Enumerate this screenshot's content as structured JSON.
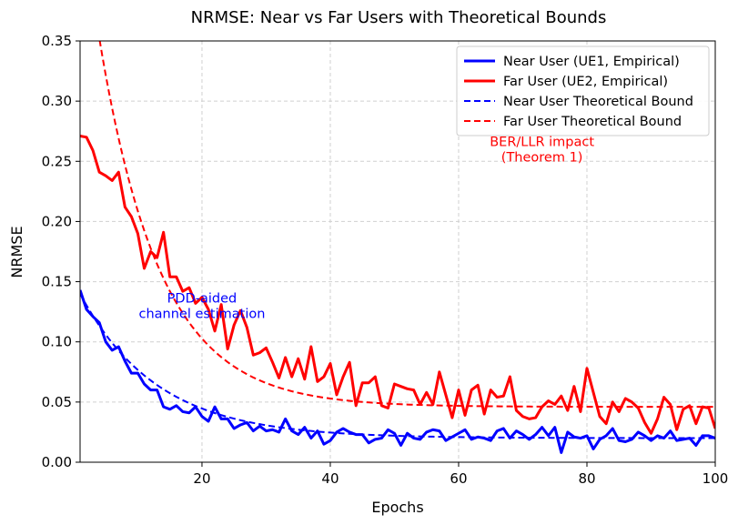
{
  "chart_data": {
    "type": "line",
    "title": "NRMSE: Near vs Far Users with Theoretical Bounds",
    "xlabel": "Epochs",
    "ylabel": "NRMSE",
    "xlim": [
      1,
      100
    ],
    "ylim": [
      0,
      0.35
    ],
    "x_ticks": [
      20,
      40,
      60,
      80,
      100
    ],
    "x_tick_labels": [
      "20",
      "40",
      "60",
      "80",
      "100"
    ],
    "y_ticks": [
      0.0,
      0.05,
      0.1,
      0.15,
      0.2,
      0.25,
      0.3,
      0.35
    ],
    "y_tick_labels": [
      "0.00",
      "0.05",
      "0.10",
      "0.15",
      "0.20",
      "0.25",
      "0.30",
      "0.35"
    ],
    "grid": true,
    "legend_position": "top-right",
    "x": [
      1,
      2,
      3,
      4,
      5,
      6,
      7,
      8,
      9,
      10,
      11,
      12,
      13,
      14,
      15,
      16,
      17,
      18,
      19,
      20,
      21,
      22,
      23,
      24,
      25,
      26,
      27,
      28,
      29,
      30,
      31,
      32,
      33,
      34,
      35,
      36,
      37,
      38,
      39,
      40,
      41,
      42,
      43,
      44,
      45,
      46,
      47,
      48,
      49,
      50,
      51,
      52,
      53,
      54,
      55,
      56,
      57,
      58,
      59,
      60,
      61,
      62,
      63,
      64,
      65,
      66,
      67,
      68,
      69,
      70,
      71,
      72,
      73,
      74,
      75,
      76,
      77,
      78,
      79,
      80,
      81,
      82,
      83,
      84,
      85,
      86,
      87,
      88,
      89,
      90,
      91,
      92,
      93,
      94,
      95,
      96,
      97,
      98,
      99,
      100
    ],
    "series": [
      {
        "name": "Near User (UE1, Empirical)",
        "color": "#0000ff",
        "style": "solid",
        "values": [
          0.143,
          0.127,
          0.121,
          0.116,
          0.1,
          0.093,
          0.096,
          0.084,
          0.074,
          0.074,
          0.065,
          0.06,
          0.06,
          0.046,
          0.044,
          0.047,
          0.042,
          0.041,
          0.046,
          0.038,
          0.034,
          0.046,
          0.036,
          0.036,
          0.028,
          0.031,
          0.033,
          0.026,
          0.03,
          0.026,
          0.027,
          0.025,
          0.036,
          0.026,
          0.023,
          0.029,
          0.02,
          0.026,
          0.015,
          0.018,
          0.025,
          0.028,
          0.025,
          0.023,
          0.023,
          0.016,
          0.019,
          0.02,
          0.027,
          0.024,
          0.014,
          0.024,
          0.02,
          0.019,
          0.025,
          0.027,
          0.026,
          0.018,
          0.021,
          0.024,
          0.027,
          0.019,
          0.021,
          0.02,
          0.018,
          0.026,
          0.028,
          0.02,
          0.026,
          0.023,
          0.019,
          0.023,
          0.029,
          0.022,
          0.029,
          0.008,
          0.025,
          0.021,
          0.02,
          0.022,
          0.011,
          0.019,
          0.022,
          0.028,
          0.018,
          0.017,
          0.019,
          0.025,
          0.022,
          0.018,
          0.022,
          0.02,
          0.026,
          0.018,
          0.019,
          0.02,
          0.014,
          0.022,
          0.022,
          0.02
        ]
      },
      {
        "name": "Far User (UE2, Empirical)",
        "color": "#ff0000",
        "style": "solid",
        "values": [
          0.271,
          0.27,
          0.259,
          0.241,
          0.238,
          0.234,
          0.241,
          0.212,
          0.204,
          0.19,
          0.161,
          0.175,
          0.17,
          0.191,
          0.154,
          0.154,
          0.142,
          0.145,
          0.132,
          0.137,
          0.127,
          0.109,
          0.131,
          0.094,
          0.114,
          0.126,
          0.112,
          0.089,
          0.091,
          0.095,
          0.083,
          0.07,
          0.087,
          0.071,
          0.086,
          0.069,
          0.096,
          0.067,
          0.071,
          0.082,
          0.056,
          0.071,
          0.083,
          0.047,
          0.066,
          0.066,
          0.071,
          0.047,
          0.045,
          0.065,
          0.063,
          0.061,
          0.06,
          0.048,
          0.058,
          0.048,
          0.075,
          0.056,
          0.037,
          0.06,
          0.039,
          0.06,
          0.064,
          0.04,
          0.06,
          0.054,
          0.055,
          0.071,
          0.043,
          0.038,
          0.036,
          0.037,
          0.046,
          0.051,
          0.048,
          0.055,
          0.043,
          0.063,
          0.042,
          0.078,
          0.058,
          0.038,
          0.032,
          0.05,
          0.042,
          0.053,
          0.05,
          0.045,
          0.033,
          0.024,
          0.036,
          0.054,
          0.048,
          0.027,
          0.044,
          0.047,
          0.032,
          0.046,
          0.045,
          0.028
        ]
      },
      {
        "name": "Near User Theoretical Bound",
        "color": "#0000ff",
        "style": "dashed",
        "formula": "0.02 + 0.12 * 0.92^(epoch-1)"
      },
      {
        "name": "Far User Theoretical Bound",
        "color": "#ff0000",
        "style": "dashed",
        "formula": "0.046 + 0.42 * 0.90^(epoch-1)"
      }
    ],
    "annotations": [
      {
        "lines": [
          "PDD-aided",
          "channel estimation"
        ],
        "color": "#0000ff",
        "x": 20,
        "y": 0.126
      },
      {
        "lines": [
          "BER/LLR impact",
          "(Theorem 1)"
        ],
        "color": "#ff0000",
        "x": 73,
        "y": 0.256
      }
    ]
  }
}
